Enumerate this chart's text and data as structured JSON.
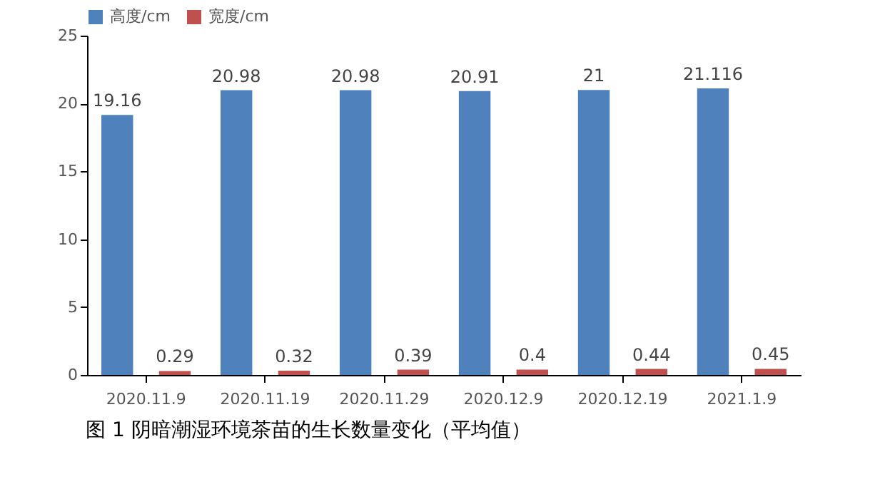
{
  "chart_data": {
    "type": "bar",
    "categories": [
      "2020.11.9",
      "2020.11.19",
      "2020.11.29",
      "2020.12.9",
      "2020.12.19",
      "2021.1.9"
    ],
    "series": [
      {
        "name": "高度/cm",
        "color": "#4f81bd",
        "values": [
          19.16,
          20.98,
          20.98,
          20.91,
          21,
          21.116
        ]
      },
      {
        "name": "宽度/cm",
        "color": "#c0504d",
        "values": [
          0.29,
          0.32,
          0.39,
          0.4,
          0.44,
          0.45
        ]
      }
    ],
    "ylim": [
      0,
      25
    ],
    "yticks": [
      0,
      5,
      10,
      15,
      20,
      25
    ],
    "grid": false,
    "legend": "top",
    "data_labels": true,
    "annotations": [
      "图 1 阴暗潮湿环境茶苗的生长数量变化（平均值）"
    ]
  }
}
